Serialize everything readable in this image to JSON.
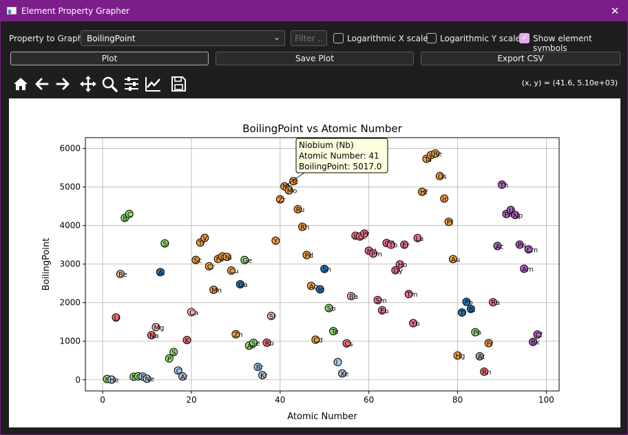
{
  "window": {
    "title": "Element Property Grapher",
    "close_glyph": "✕"
  },
  "controls": {
    "property_label": "Property to Graph:",
    "property_value": "BoilingPoint",
    "filter_placeholder": "Filter ...",
    "log_x_label": "Logarithmic X scale",
    "log_x_checked": false,
    "log_y_label": "Logarithmic Y scale",
    "log_y_checked": false,
    "symbols_label": "Show element symbols",
    "symbols_checked": true,
    "plot_button": "Plot",
    "save_button": "Save Plot",
    "export_button": "Export CSV"
  },
  "toolbar": {
    "icons": [
      "home-icon",
      "back-icon",
      "forward-icon",
      "pan-icon",
      "zoom-icon",
      "configure-subplots-icon",
      "edit-axis-icon",
      "save-icon"
    ],
    "coords": "(x, y) = (41.6, 5.10e+03)"
  },
  "tooltip": {
    "lines": [
      "Niobium (Nb)",
      "Atomic Number: 41",
      "BoilingPoint: 5017.0"
    ],
    "anchor_x": 41,
    "anchor_y": 5017
  },
  "chart_data": {
    "type": "scatter",
    "title": "BoilingPoint vs Atomic Number",
    "xlabel": "Atomic Number",
    "ylabel": "BoilingPoint",
    "xlim": [
      -3.9,
      102.9
    ],
    "ylim": [
      -290,
      6280
    ],
    "xticks": [
      0,
      20,
      40,
      60,
      80,
      100
    ],
    "yticks": [
      0,
      1000,
      2000,
      3000,
      4000,
      5000,
      6000
    ],
    "grid": true,
    "category_colors": {
      "nonmetal": "#90e070",
      "noble": "#aabfd8",
      "alkali": "#f07070",
      "alkaline": "#f0b8a8",
      "metalloid": "#a8a0a0",
      "post": "#2878b8",
      "transition": "#f0a040",
      "lanthanide": "#f07090",
      "actinide": "#b060c0",
      "halogen": "#a8c8f0",
      "unknown": "#b0b0b0"
    },
    "points": [
      {
        "x": 1,
        "y": 20,
        "s": "H",
        "c": "nonmetal"
      },
      {
        "x": 2,
        "y": 4,
        "s": "He",
        "c": "noble"
      },
      {
        "x": 3,
        "y": 1615,
        "s": "Li",
        "c": "alkali"
      },
      {
        "x": 4,
        "y": 2742,
        "s": "Be",
        "c": "alkaline"
      },
      {
        "x": 5,
        "y": 4200,
        "s": "B",
        "c": "nonmetal"
      },
      {
        "x": 6,
        "y": 4300,
        "s": "C",
        "c": "nonmetal"
      },
      {
        "x": 7,
        "y": 77,
        "s": "N",
        "c": "nonmetal"
      },
      {
        "x": 8,
        "y": 90,
        "s": "O",
        "c": "nonmetal"
      },
      {
        "x": 9,
        "y": 85,
        "s": "F",
        "c": "halogen"
      },
      {
        "x": 10,
        "y": 27,
        "s": "Ne",
        "c": "noble"
      },
      {
        "x": 11,
        "y": 1156,
        "s": "Na",
        "c": "alkali"
      },
      {
        "x": 12,
        "y": 1363,
        "s": "Mg",
        "c": "alkaline"
      },
      {
        "x": 13,
        "y": 2792,
        "s": "Al",
        "c": "post"
      },
      {
        "x": 14,
        "y": 3538,
        "s": "Si",
        "c": "nonmetal"
      },
      {
        "x": 15,
        "y": 553,
        "s": "P",
        "c": "nonmetal"
      },
      {
        "x": 16,
        "y": 718,
        "s": "S",
        "c": "nonmetal"
      },
      {
        "x": 17,
        "y": 239,
        "s": "Cl",
        "c": "halogen"
      },
      {
        "x": 18,
        "y": 87,
        "s": "Ar",
        "c": "noble"
      },
      {
        "x": 19,
        "y": 1032,
        "s": "K",
        "c": "alkali"
      },
      {
        "x": 20,
        "y": 1757,
        "s": "Ca",
        "c": "alkaline"
      },
      {
        "x": 21,
        "y": 3109,
        "s": "Sc",
        "c": "transition"
      },
      {
        "x": 22,
        "y": 3560,
        "s": "Ti",
        "c": "transition"
      },
      {
        "x": 23,
        "y": 3680,
        "s": "V",
        "c": "transition"
      },
      {
        "x": 24,
        "y": 2944,
        "s": "Cr",
        "c": "transition"
      },
      {
        "x": 25,
        "y": 2334,
        "s": "Mn",
        "c": "transition"
      },
      {
        "x": 26,
        "y": 3134,
        "s": "Fe",
        "c": "transition"
      },
      {
        "x": 27,
        "y": 3200,
        "s": "Co",
        "c": "transition"
      },
      {
        "x": 28,
        "y": 3186,
        "s": "Ni",
        "c": "transition"
      },
      {
        "x": 29,
        "y": 2835,
        "s": "Cu",
        "c": "transition"
      },
      {
        "x": 30,
        "y": 1180,
        "s": "Zn",
        "c": "transition"
      },
      {
        "x": 31,
        "y": 2477,
        "s": "Ga",
        "c": "post"
      },
      {
        "x": 32,
        "y": 3106,
        "s": "Ge",
        "c": "nonmetal"
      },
      {
        "x": 33,
        "y": 887,
        "s": "As",
        "c": "nonmetal"
      },
      {
        "x": 34,
        "y": 958,
        "s": "Se",
        "c": "nonmetal"
      },
      {
        "x": 35,
        "y": 332,
        "s": "Br",
        "c": "halogen"
      },
      {
        "x": 36,
        "y": 120,
        "s": "Kr",
        "c": "noble"
      },
      {
        "x": 37,
        "y": 961,
        "s": "Rb",
        "c": "alkali"
      },
      {
        "x": 38,
        "y": 1655,
        "s": "Sr",
        "c": "alkaline"
      },
      {
        "x": 39,
        "y": 3609,
        "s": "Y",
        "c": "transition"
      },
      {
        "x": 40,
        "y": 4682,
        "s": "Zr",
        "c": "transition"
      },
      {
        "x": 41,
        "y": 5017,
        "s": "Nb",
        "c": "transition"
      },
      {
        "x": 42,
        "y": 4912,
        "s": "Mo",
        "c": "transition"
      },
      {
        "x": 43,
        "y": 5150,
        "s": "Tc",
        "c": "transition"
      },
      {
        "x": 44,
        "y": 4423,
        "s": "Ru",
        "c": "transition"
      },
      {
        "x": 45,
        "y": 3968,
        "s": "Rh",
        "c": "transition"
      },
      {
        "x": 46,
        "y": 3236,
        "s": "Pd",
        "c": "transition"
      },
      {
        "x": 47,
        "y": 2435,
        "s": "Ag",
        "c": "transition"
      },
      {
        "x": 48,
        "y": 1040,
        "s": "Cd",
        "c": "transition"
      },
      {
        "x": 49,
        "y": 2345,
        "s": "In",
        "c": "post"
      },
      {
        "x": 50,
        "y": 2875,
        "s": "Sn",
        "c": "post"
      },
      {
        "x": 51,
        "y": 1860,
        "s": "Sb",
        "c": "nonmetal"
      },
      {
        "x": 52,
        "y": 1261,
        "s": "Te",
        "c": "nonmetal"
      },
      {
        "x": 53,
        "y": 457,
        "s": "I",
        "c": "halogen"
      },
      {
        "x": 54,
        "y": 165,
        "s": "Xe",
        "c": "noble"
      },
      {
        "x": 55,
        "y": 944,
        "s": "Cs",
        "c": "alkali"
      },
      {
        "x": 56,
        "y": 2170,
        "s": "Ba",
        "c": "alkaline"
      },
      {
        "x": 57,
        "y": 3737,
        "s": "La",
        "c": "lanthanide"
      },
      {
        "x": 58,
        "y": 3716,
        "s": "Ce",
        "c": "lanthanide"
      },
      {
        "x": 59,
        "y": 3793,
        "s": "Pr",
        "c": "lanthanide"
      },
      {
        "x": 60,
        "y": 3347,
        "s": "Nd",
        "c": "lanthanide"
      },
      {
        "x": 61,
        "y": 3273,
        "s": "Pm",
        "c": "lanthanide"
      },
      {
        "x": 62,
        "y": 2067,
        "s": "Sm",
        "c": "lanthanide"
      },
      {
        "x": 63,
        "y": 1802,
        "s": "Eu",
        "c": "lanthanide"
      },
      {
        "x": 64,
        "y": 3546,
        "s": "Gd",
        "c": "lanthanide"
      },
      {
        "x": 65,
        "y": 3503,
        "s": "Tb",
        "c": "lanthanide"
      },
      {
        "x": 66,
        "y": 2840,
        "s": "Dy",
        "c": "lanthanide"
      },
      {
        "x": 67,
        "y": 2993,
        "s": "Ho",
        "c": "lanthanide"
      },
      {
        "x": 68,
        "y": 3503,
        "s": "Er",
        "c": "lanthanide"
      },
      {
        "x": 69,
        "y": 2223,
        "s": "Tm",
        "c": "lanthanide"
      },
      {
        "x": 70,
        "y": 1469,
        "s": "Yb",
        "c": "lanthanide"
      },
      {
        "x": 71,
        "y": 3675,
        "s": "Lu",
        "c": "lanthanide"
      },
      {
        "x": 72,
        "y": 4876,
        "s": "Hf",
        "c": "transition"
      },
      {
        "x": 73,
        "y": 5731,
        "s": "Ta",
        "c": "transition"
      },
      {
        "x": 74,
        "y": 5828,
        "s": "W",
        "c": "transition"
      },
      {
        "x": 75,
        "y": 5869,
        "s": "Re",
        "c": "transition"
      },
      {
        "x": 76,
        "y": 5285,
        "s": "Os",
        "c": "transition"
      },
      {
        "x": 77,
        "y": 4701,
        "s": "Ir",
        "c": "transition"
      },
      {
        "x": 78,
        "y": 4098,
        "s": "Pt",
        "c": "transition"
      },
      {
        "x": 79,
        "y": 3129,
        "s": "Au",
        "c": "transition"
      },
      {
        "x": 80,
        "y": 630,
        "s": "Hg",
        "c": "transition"
      },
      {
        "x": 81,
        "y": 1746,
        "s": "Tl",
        "c": "post"
      },
      {
        "x": 82,
        "y": 2022,
        "s": "Pb",
        "c": "post"
      },
      {
        "x": 83,
        "y": 1837,
        "s": "Bi",
        "c": "post"
      },
      {
        "x": 84,
        "y": 1235,
        "s": "Po",
        "c": "nonmetal"
      },
      {
        "x": 85,
        "y": 610,
        "s": "At",
        "c": "metalloid"
      },
      {
        "x": 86,
        "y": 211,
        "s": "Rn",
        "c": "alkali"
      },
      {
        "x": 87,
        "y": 950,
        "s": "Fr",
        "c": "transition"
      },
      {
        "x": 88,
        "y": 2010,
        "s": "Ra",
        "c": "lanthanide"
      },
      {
        "x": 89,
        "y": 3471,
        "s": "Ac",
        "c": "actinide"
      },
      {
        "x": 90,
        "y": 5061,
        "s": "Th",
        "c": "actinide"
      },
      {
        "x": 91,
        "y": 4300,
        "s": "Pa",
        "c": "actinide"
      },
      {
        "x": 92,
        "y": 4404,
        "s": "U",
        "c": "actinide"
      },
      {
        "x": 93,
        "y": 4273,
        "s": "Np",
        "c": "actinide"
      },
      {
        "x": 94,
        "y": 3505,
        "s": "Pu",
        "c": "actinide"
      },
      {
        "x": 95,
        "y": 2880,
        "s": "Am",
        "c": "actinide"
      },
      {
        "x": 96,
        "y": 3383,
        "s": "Cm",
        "c": "actinide"
      },
      {
        "x": 97,
        "y": 983,
        "s": "Bk",
        "c": "actinide"
      },
      {
        "x": 98,
        "y": 1173,
        "s": "Cf",
        "c": "actinide"
      }
    ]
  }
}
